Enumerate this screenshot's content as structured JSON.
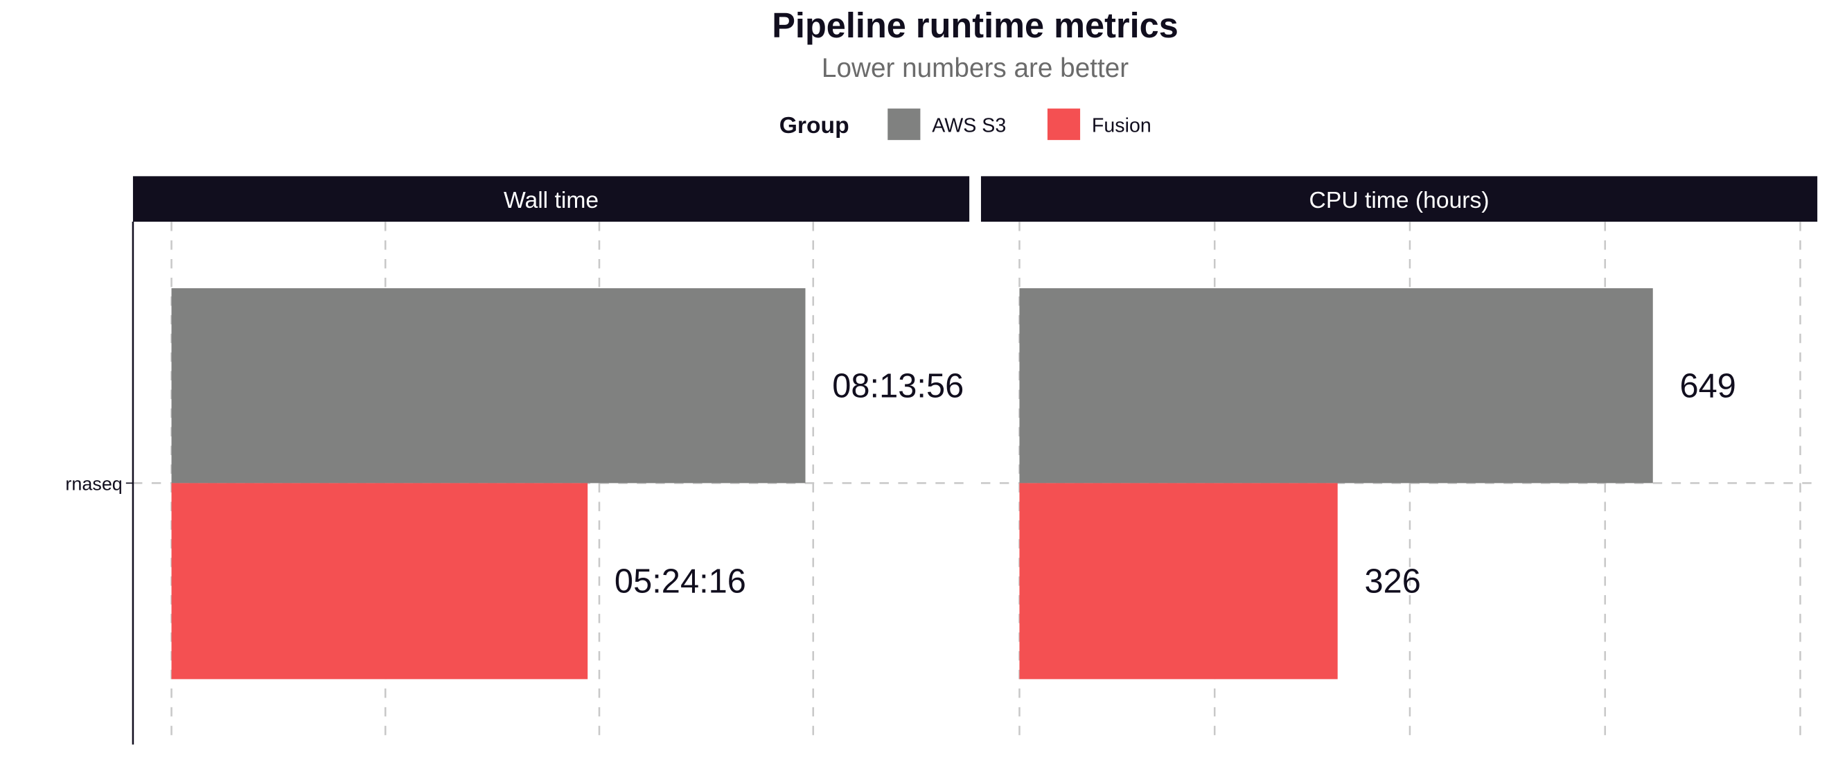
{
  "title": "Pipeline runtime metrics",
  "subtitle": "Lower numbers are better",
  "legend": {
    "title": "Group",
    "position": "top",
    "items": [
      {
        "label": "AWS S3",
        "color": "#808180"
      },
      {
        "label": "Fusion",
        "color": "#F45052"
      }
    ]
  },
  "strip_color": "#110E1E",
  "chart_data": [
    {
      "type": "bar",
      "orientation": "horizontal",
      "facet": "Wall time",
      "categories": [
        "rnaseq"
      ],
      "unit": "seconds",
      "xlim": [
        -1800,
        37300
      ],
      "x_gridlines": [
        0,
        10000,
        20000,
        30000
      ],
      "x_tick_labels_shown": false,
      "grid": "dashed",
      "series": [
        {
          "name": "AWS S3",
          "values": [
            29636
          ],
          "labels": [
            "08:13:56"
          ]
        },
        {
          "name": "Fusion",
          "values": [
            19456
          ],
          "labels": [
            "05:24:16"
          ]
        }
      ]
    },
    {
      "type": "bar",
      "orientation": "horizontal",
      "facet": "CPU time (hours)",
      "categories": [
        "rnaseq"
      ],
      "xlim": [
        -39.4,
        817.5
      ],
      "x_gridlines": [
        0,
        200,
        400,
        600,
        800
      ],
      "x_tick_labels_shown": false,
      "grid": "dashed",
      "series": [
        {
          "name": "AWS S3",
          "values": [
            649
          ],
          "labels": [
            "649"
          ]
        },
        {
          "name": "Fusion",
          "values": [
            326
          ],
          "labels": [
            "326"
          ]
        }
      ]
    }
  ]
}
